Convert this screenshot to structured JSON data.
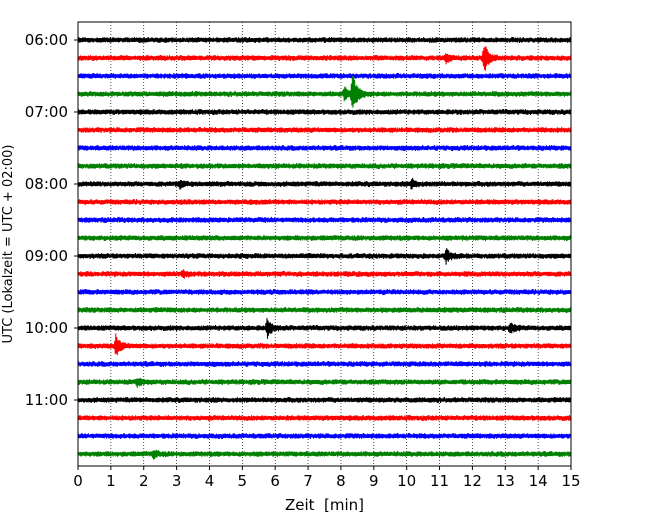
{
  "chart_data": {
    "type": "line",
    "xlabel": "Zeit  [min]",
    "ylabel": "UTC (Lokalzeit = UTC + 02:00)",
    "xlim": [
      0,
      15
    ],
    "x_ticks": [
      "0",
      "1",
      "2",
      "3",
      "4",
      "5",
      "6",
      "7",
      "8",
      "9",
      "10",
      "11",
      "12",
      "13",
      "14",
      "15"
    ],
    "y_tick_labels": [
      "06:00",
      "07:00",
      "08:00",
      "09:00",
      "10:00",
      "11:00"
    ],
    "grid": "vertical dotted",
    "colors": [
      "#000000",
      "#ff0000",
      "#0000ff",
      "#008000"
    ],
    "traces": [
      {
        "start": "06:00",
        "color": "#000000",
        "events": []
      },
      {
        "start": "06:15",
        "color": "#ff0000",
        "events": [
          {
            "t": 12.35,
            "amp": 2.2
          },
          {
            "t": 11.2,
            "amp": 0.6
          }
        ]
      },
      {
        "start": "06:30",
        "color": "#0000ff",
        "events": []
      },
      {
        "start": "06:45",
        "color": "#008000",
        "events": [
          {
            "t": 8.35,
            "amp": 3.0
          },
          {
            "t": 8.1,
            "amp": 0.8
          }
        ]
      },
      {
        "start": "07:00",
        "color": "#000000",
        "events": []
      },
      {
        "start": "07:15",
        "color": "#ff0000",
        "events": []
      },
      {
        "start": "07:30",
        "color": "#0000ff",
        "events": []
      },
      {
        "start": "07:45",
        "color": "#008000",
        "events": []
      },
      {
        "start": "08:00",
        "color": "#000000",
        "events": [
          {
            "t": 10.15,
            "amp": 0.7
          },
          {
            "t": 3.1,
            "amp": 0.4
          }
        ]
      },
      {
        "start": "08:15",
        "color": "#ff0000",
        "events": []
      },
      {
        "start": "08:30",
        "color": "#0000ff",
        "events": []
      },
      {
        "start": "08:45",
        "color": "#008000",
        "events": []
      },
      {
        "start": "09:00",
        "color": "#000000",
        "events": [
          {
            "t": 11.2,
            "amp": 0.9
          }
        ]
      },
      {
        "start": "09:15",
        "color": "#ff0000",
        "events": [
          {
            "t": 3.2,
            "amp": 0.4
          }
        ]
      },
      {
        "start": "09:30",
        "color": "#0000ff",
        "events": []
      },
      {
        "start": "09:45",
        "color": "#008000",
        "events": []
      },
      {
        "start": "10:00",
        "color": "#000000",
        "events": [
          {
            "t": 5.75,
            "amp": 1.3
          },
          {
            "t": 13.15,
            "amp": 0.7
          }
        ]
      },
      {
        "start": "10:15",
        "color": "#ff0000",
        "events": [
          {
            "t": 1.15,
            "amp": 1.5
          }
        ]
      },
      {
        "start": "10:30",
        "color": "#0000ff",
        "events": []
      },
      {
        "start": "10:45",
        "color": "#008000",
        "events": [
          {
            "t": 1.8,
            "amp": 0.5
          }
        ]
      },
      {
        "start": "11:00",
        "color": "#000000",
        "events": []
      },
      {
        "start": "11:15",
        "color": "#ff0000",
        "events": []
      },
      {
        "start": "11:30",
        "color": "#0000ff",
        "events": []
      },
      {
        "start": "11:45",
        "color": "#008000",
        "events": [
          {
            "t": 2.3,
            "amp": 0.5
          }
        ]
      }
    ]
  }
}
